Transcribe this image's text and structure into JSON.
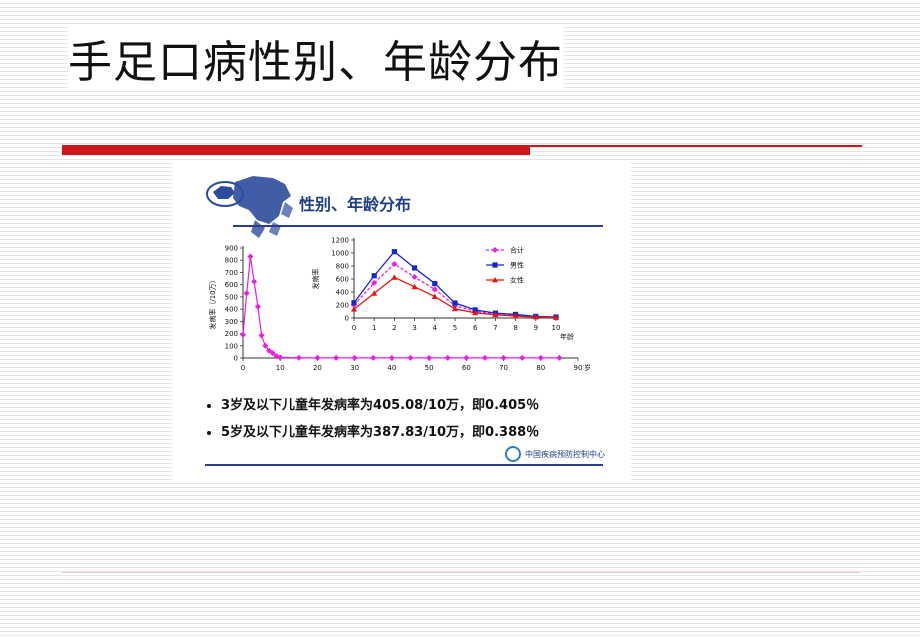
{
  "slide": {
    "title": "手足口病性别、年龄分布"
  },
  "panel": {
    "header": "性别、年龄分布",
    "bullets": [
      "3岁及以下儿童年发病率为405.08/10万，即0.405％",
      "5岁及以下儿童年发病率为387.83/10万，即0.388％"
    ],
    "org_name": "中国疾病预防控制中心",
    "colors": {
      "header": "#1e3f86",
      "rule": "#2a3e8c",
      "map": "#2b4b9c"
    }
  },
  "chart_data": [
    {
      "type": "line",
      "title": "",
      "ylabel": "发病率（/10万）",
      "xlabel": "",
      "x_unit": "岁",
      "xlim": [
        0,
        90
      ],
      "ylim": [
        0,
        900
      ],
      "xticks": [
        0,
        10,
        20,
        30,
        40,
        50,
        60,
        70,
        80,
        90
      ],
      "yticks": [
        0,
        100,
        200,
        300,
        400,
        500,
        600,
        700,
        800,
        900
      ],
      "series": [
        {
          "color": "#e91ee0",
          "x": [
            0,
            1,
            2,
            3,
            4,
            5,
            6,
            7,
            8,
            9,
            10,
            15,
            20,
            25,
            30,
            35,
            40,
            45,
            50,
            55,
            60,
            65,
            70,
            75,
            80,
            85
          ],
          "y": [
            190,
            530,
            830,
            625,
            420,
            185,
            100,
            60,
            40,
            15,
            5,
            2,
            1,
            1,
            1,
            1,
            1,
            1,
            1,
            1,
            1,
            1,
            1,
            1,
            1,
            1
          ]
        }
      ],
      "grid": false
    },
    {
      "type": "line",
      "title": "",
      "ylabel": "发病率",
      "xlabel": "年龄",
      "xlim": [
        0,
        10
      ],
      "ylim": [
        0,
        1200
      ],
      "xticks": [
        0,
        1,
        2,
        3,
        4,
        5,
        6,
        7,
        8,
        9,
        10
      ],
      "yticks": [
        0,
        200,
        400,
        600,
        800,
        1000,
        1200
      ],
      "legend": "top-right",
      "categories": [
        0,
        1,
        2,
        3,
        4,
        5,
        6,
        7,
        8,
        9,
        10
      ],
      "series": [
        {
          "name": "合计",
          "color": "#e91ee0",
          "marker": "diamond",
          "dash": true,
          "values": [
            200,
            540,
            830,
            630,
            440,
            190,
            105,
            60,
            45,
            20,
            10
          ]
        },
        {
          "name": "男性",
          "color": "#1428c8",
          "marker": "square",
          "dash": false,
          "values": [
            235,
            650,
            1020,
            770,
            530,
            230,
            125,
            75,
            55,
            25,
            15
          ]
        },
        {
          "name": "女性",
          "color": "#e81414",
          "marker": "triangle",
          "dash": false,
          "values": [
            135,
            380,
            625,
            480,
            330,
            140,
            80,
            50,
            30,
            15,
            8
          ]
        }
      ],
      "grid": false
    }
  ]
}
